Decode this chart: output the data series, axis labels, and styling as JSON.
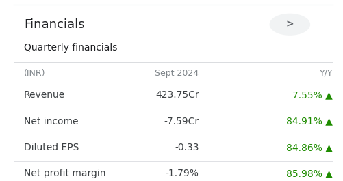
{
  "title": "Financials",
  "subtitle": "Quarterly financials",
  "header": [
    "(INR)",
    "Sept 2024",
    "Y/Y"
  ],
  "rows": [
    {
      "label": "Revenue",
      "value": "423.75Cr",
      "yoy": "7.55%",
      "arrow": "▲"
    },
    {
      "label": "Net income",
      "value": "-7.59Cr",
      "yoy": "84.91%",
      "arrow": "▲"
    },
    {
      "label": "Diluted EPS",
      "value": "-0.33",
      "yoy": "84.86%",
      "arrow": "▲"
    },
    {
      "label": "Net profit margin",
      "value": "-1.79%",
      "yoy": "85.98%",
      "arrow": "▲"
    }
  ],
  "bg_color": "#ffffff",
  "title_color": "#202124",
  "subtitle_color": "#202124",
  "header_color": "#80868b",
  "label_color": "#3c4043",
  "value_color": "#3c4043",
  "yoy_color": "#1e8c00",
  "line_color": "#dadce0",
  "chevron_bg": "#f1f3f4",
  "chevron_color": "#5f6368",
  "title_fontsize": 13,
  "subtitle_fontsize": 10,
  "header_fontsize": 9,
  "row_fontsize": 10
}
